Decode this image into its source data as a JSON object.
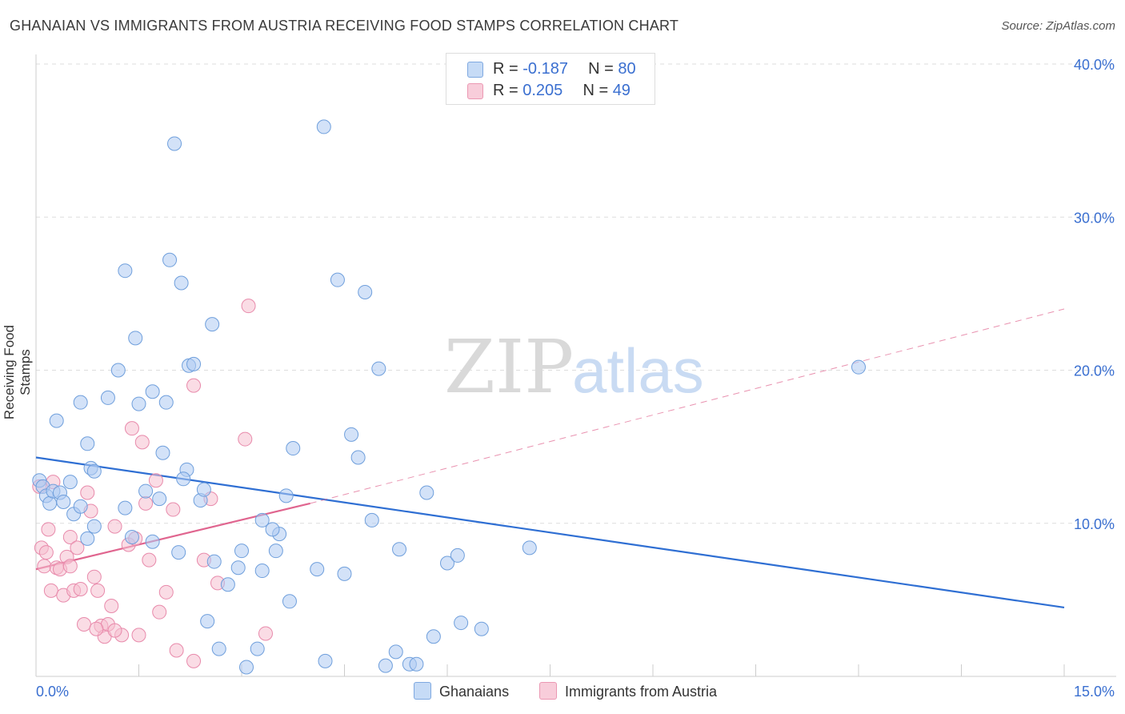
{
  "title": "GHANAIAN VS IMMIGRANTS FROM AUSTRIA RECEIVING FOOD STAMPS CORRELATION CHART",
  "source": "Source: ZipAtlas.com",
  "watermark": {
    "zip": "ZIP",
    "atlas": "atlas"
  },
  "legend": {
    "r_label": "R =",
    "n_label": "N =",
    "ghanaians": {
      "r": "-0.187",
      "n": "80"
    },
    "austria": {
      "r": "0.205",
      "n": "49"
    }
  },
  "bottom_legend": {
    "ghanaians": "Ghanaians",
    "austria": "Immigrants from Austria"
  },
  "colors": {
    "blue_fill": "#aecbf2",
    "blue_stroke": "#6f9fdc",
    "blue_line": "#2f6fd3",
    "pink_fill": "#f5bfd0",
    "pink_stroke": "#e88aab",
    "pink_line": "#e0658f",
    "axis_text": "#3a6fd0"
  },
  "chart_data": {
    "type": "scatter",
    "title": "GHANAIAN VS IMMIGRANTS FROM AUSTRIA RECEIVING FOOD STAMPS CORRELATION CHART",
    "xlabel": "",
    "ylabel": "Receiving Food Stamps",
    "xlim": [
      0,
      15
    ],
    "ylim": [
      0,
      40
    ],
    "x_tick_labels": [
      "0.0%",
      "15.0%"
    ],
    "y_tick_labels": [
      "10.0%",
      "20.0%",
      "30.0%",
      "40.0%"
    ],
    "y_ticks": [
      10,
      20,
      30,
      40
    ],
    "grid": true,
    "legend_position": "top-center",
    "series": [
      {
        "name": "Ghanaians",
        "points": [
          [
            0.05,
            12.8
          ],
          [
            0.1,
            12.4
          ],
          [
            0.15,
            11.8
          ],
          [
            0.2,
            11.3
          ],
          [
            0.25,
            12.1
          ],
          [
            0.35,
            12.0
          ],
          [
            0.4,
            11.4
          ],
          [
            0.5,
            12.7
          ],
          [
            0.55,
            10.6
          ],
          [
            0.65,
            11.1
          ],
          [
            0.75,
            9.0
          ],
          [
            0.85,
            9.8
          ],
          [
            0.3,
            16.7
          ],
          [
            0.75,
            15.2
          ],
          [
            0.8,
            13.6
          ],
          [
            0.85,
            13.4
          ],
          [
            0.65,
            17.9
          ],
          [
            1.05,
            18.2
          ],
          [
            1.2,
            20.0
          ],
          [
            1.3,
            26.5
          ],
          [
            1.45,
            22.1
          ],
          [
            1.5,
            17.8
          ],
          [
            1.7,
            18.6
          ],
          [
            1.85,
            14.6
          ],
          [
            1.9,
            17.9
          ],
          [
            1.95,
            27.2
          ],
          [
            2.02,
            34.8
          ],
          [
            2.12,
            25.7
          ],
          [
            2.23,
            20.3
          ],
          [
            2.3,
            20.4
          ],
          [
            2.2,
            13.5
          ],
          [
            2.15,
            12.9
          ],
          [
            2.4,
            11.5
          ],
          [
            2.45,
            12.2
          ],
          [
            2.57,
            23.0
          ],
          [
            1.3,
            11.0
          ],
          [
            1.4,
            9.1
          ],
          [
            1.6,
            12.1
          ],
          [
            1.7,
            8.8
          ],
          [
            1.8,
            11.6
          ],
          [
            2.08,
            8.1
          ],
          [
            2.6,
            7.5
          ],
          [
            2.8,
            6.0
          ],
          [
            2.95,
            7.1
          ],
          [
            3.0,
            8.2
          ],
          [
            3.3,
            6.9
          ],
          [
            3.5,
            8.2
          ],
          [
            3.55,
            9.3
          ],
          [
            3.45,
            9.6
          ],
          [
            3.3,
            10.2
          ],
          [
            3.65,
            11.8
          ],
          [
            3.75,
            14.9
          ],
          [
            3.7,
            4.9
          ],
          [
            4.1,
            7.0
          ],
          [
            4.2,
            35.9
          ],
          [
            4.4,
            25.9
          ],
          [
            4.5,
            6.7
          ],
          [
            4.6,
            15.8
          ],
          [
            4.7,
            14.3
          ],
          [
            4.8,
            25.1
          ],
          [
            4.9,
            10.2
          ],
          [
            5.0,
            20.1
          ],
          [
            5.3,
            8.3
          ],
          [
            5.7,
            12.0
          ],
          [
            5.8,
            2.6
          ],
          [
            6.0,
            7.4
          ],
          [
            6.15,
            7.9
          ],
          [
            6.2,
            3.5
          ],
          [
            7.2,
            8.4
          ],
          [
            12.0,
            20.2
          ],
          [
            2.5,
            3.6
          ],
          [
            2.67,
            1.8
          ],
          [
            3.07,
            0.6
          ],
          [
            3.23,
            1.8
          ],
          [
            4.22,
            1.0
          ],
          [
            5.1,
            0.7
          ],
          [
            5.25,
            1.6
          ],
          [
            5.45,
            0.8
          ],
          [
            5.55,
            0.8
          ],
          [
            6.5,
            3.1
          ]
        ]
      },
      {
        "name": "Immigrants from Austria",
        "points": [
          [
            0.05,
            12.4
          ],
          [
            0.08,
            8.4
          ],
          [
            0.12,
            7.2
          ],
          [
            0.15,
            8.1
          ],
          [
            0.18,
            9.6
          ],
          [
            0.22,
            5.6
          ],
          [
            0.25,
            12.7
          ],
          [
            0.3,
            7.1
          ],
          [
            0.35,
            7.0
          ],
          [
            0.4,
            5.3
          ],
          [
            0.45,
            7.8
          ],
          [
            0.5,
            7.2
          ],
          [
            0.5,
            9.1
          ],
          [
            0.55,
            5.6
          ],
          [
            0.6,
            8.4
          ],
          [
            0.65,
            5.7
          ],
          [
            0.7,
            3.4
          ],
          [
            0.75,
            12.0
          ],
          [
            0.8,
            10.8
          ],
          [
            0.85,
            6.5
          ],
          [
            0.9,
            5.6
          ],
          [
            0.95,
            3.3
          ],
          [
            1.0,
            2.6
          ],
          [
            1.05,
            3.4
          ],
          [
            1.1,
            4.6
          ],
          [
            1.15,
            9.8
          ],
          [
            1.25,
            2.7
          ],
          [
            1.35,
            8.6
          ],
          [
            1.4,
            16.2
          ],
          [
            1.45,
            9.0
          ],
          [
            1.5,
            2.7
          ],
          [
            1.55,
            15.3
          ],
          [
            1.6,
            11.3
          ],
          [
            1.65,
            7.6
          ],
          [
            1.75,
            12.8
          ],
          [
            1.8,
            4.2
          ],
          [
            1.9,
            5.5
          ],
          [
            2.0,
            10.9
          ],
          [
            2.05,
            1.7
          ],
          [
            2.3,
            1.0
          ],
          [
            2.3,
            19.0
          ],
          [
            2.45,
            7.6
          ],
          [
            2.55,
            11.6
          ],
          [
            2.65,
            6.1
          ],
          [
            3.05,
            15.5
          ],
          [
            3.1,
            24.2
          ],
          [
            3.35,
            2.8
          ],
          [
            0.88,
            3.1
          ],
          [
            1.15,
            3.0
          ]
        ]
      }
    ],
    "trend_lines": [
      {
        "name": "Ghanaians",
        "x": [
          0,
          15
        ],
        "y": [
          14.3,
          4.5
        ]
      },
      {
        "name": "Immigrants from Austria",
        "x": [
          0,
          4.0
        ],
        "y": [
          7.0,
          11.3
        ],
        "dashed_extension_to": [
          15,
          24.0
        ]
      }
    ]
  }
}
